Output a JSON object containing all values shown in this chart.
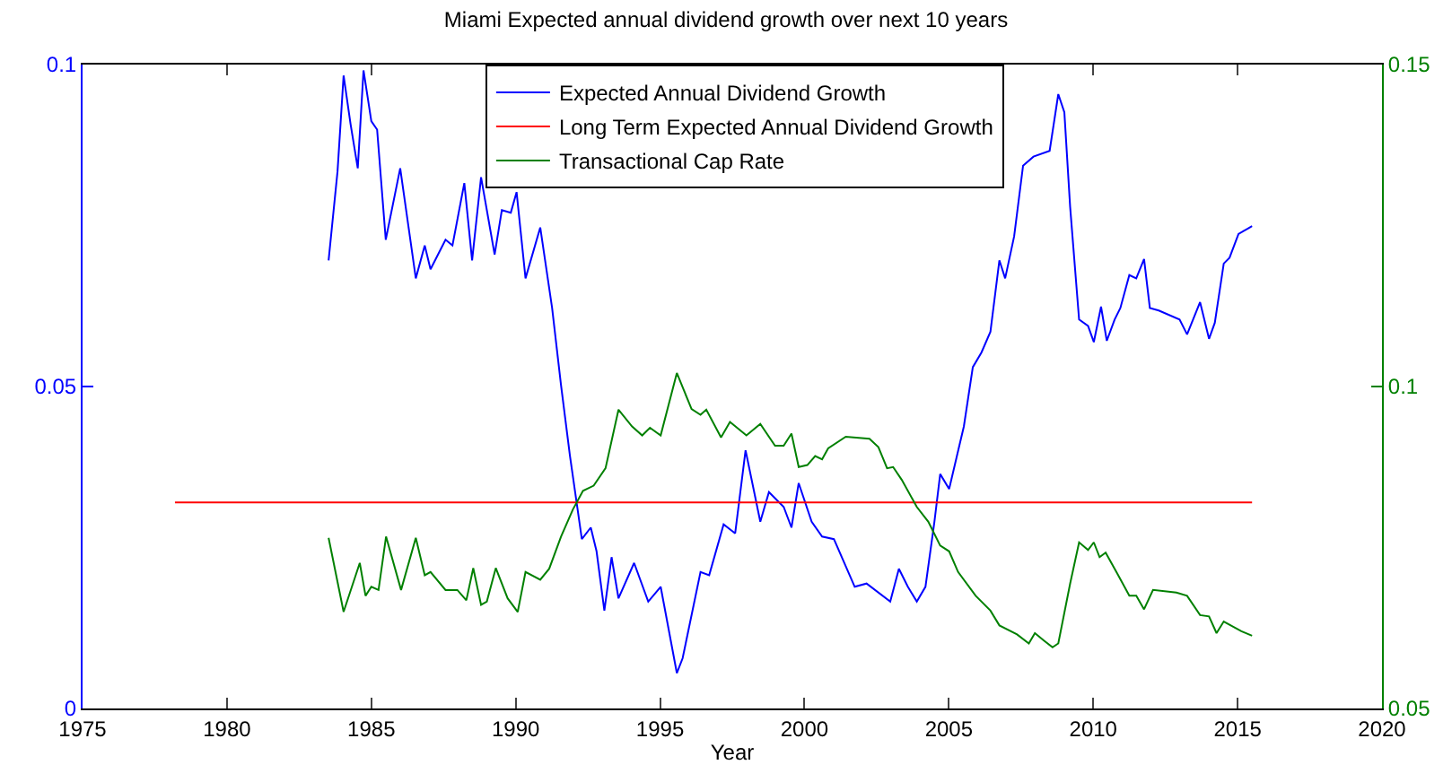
{
  "chart_data": {
    "type": "line",
    "title": "Miami Expected annual dividend growth over next 10 years",
    "xlabel": "Year",
    "xlim": [
      1975,
      2020
    ],
    "xticks": [
      1975,
      1980,
      1985,
      1990,
      1995,
      2000,
      2005,
      2010,
      2015,
      2020
    ],
    "ylim": [
      0,
      0.1
    ],
    "yticks": [
      0,
      0.05,
      0.1
    ],
    "y2lim": [
      0.05,
      0.15
    ],
    "y2ticks": [
      0.05,
      0.1,
      0.15
    ],
    "legend": "top",
    "marker": "none",
    "line_style": "solid",
    "series": [
      {
        "name": "Expected Annual Dividend Growth",
        "color": "#0000ff",
        "x": [
          1983.52,
          1983.83,
          1984.04,
          1984.28,
          1984.53,
          1984.73,
          1985.0,
          1985.2,
          1985.5,
          1986.0,
          1986.54,
          1986.85,
          1987.05,
          1987.57,
          1987.81,
          1988.22,
          1988.49,
          1988.8,
          1989.27,
          1989.52,
          1989.83,
          1990.03,
          1990.34,
          1990.85,
          1991.26,
          1991.57,
          1991.88,
          1992.29,
          1992.6,
          1992.8,
          1993.07,
          1993.32,
          1993.56,
          1994.1,
          1994.59,
          1995.02,
          1995.58,
          1995.78,
          1996.4,
          1996.7,
          1997.2,
          1997.6,
          1997.96,
          1998.47,
          1998.77,
          1999.28,
          1999.55,
          1999.8,
          2000.25,
          2000.61,
          2001.02,
          2001.74,
          2002.15,
          2002.97,
          2003.27,
          2003.58,
          2003.89,
          2004.19,
          2004.5,
          2004.7,
          2005.01,
          2005.52,
          2005.83,
          2006.13,
          2006.44,
          2006.75,
          2006.95,
          2007.26,
          2007.57,
          2007.93,
          2008.49,
          2008.79,
          2009.0,
          2009.2,
          2009.51,
          2009.82,
          2010.02,
          2010.27,
          2010.47,
          2010.74,
          2010.94,
          2011.25,
          2011.49,
          2011.76,
          2011.96,
          2012.27,
          2012.99,
          2013.25,
          2013.7,
          2014.01,
          2014.21,
          2014.52,
          2014.72,
          2015.03,
          2015.23,
          2015.5
        ],
        "values": [
          0.0696,
          0.0834,
          0.0983,
          0.0908,
          0.0839,
          0.0991,
          0.0912,
          0.0899,
          0.0728,
          0.0839,
          0.0668,
          0.0719,
          0.0682,
          0.0728,
          0.0719,
          0.0816,
          0.0696,
          0.0825,
          0.0705,
          0.0774,
          0.077,
          0.0802,
          0.0668,
          0.0747,
          0.0622,
          0.0502,
          0.0392,
          0.0263,
          0.0281,
          0.0244,
          0.0152,
          0.0235,
          0.0171,
          0.0226,
          0.0166,
          0.0189,
          0.0055,
          0.0078,
          0.0212,
          0.0207,
          0.0286,
          0.0272,
          0.0401,
          0.029,
          0.0336,
          0.0313,
          0.0281,
          0.035,
          0.029,
          0.0267,
          0.0263,
          0.0189,
          0.0194,
          0.0166,
          0.0217,
          0.0189,
          0.0166,
          0.0189,
          0.029,
          0.0364,
          0.0341,
          0.0438,
          0.053,
          0.0553,
          0.0585,
          0.0696,
          0.0668,
          0.0733,
          0.0843,
          0.0857,
          0.0866,
          0.0954,
          0.0926,
          0.0779,
          0.0604,
          0.0594,
          0.0569,
          0.0624,
          0.0571,
          0.0604,
          0.0622,
          0.0673,
          0.0668,
          0.0698,
          0.0622,
          0.0618,
          0.0604,
          0.0581,
          0.0631,
          0.0574,
          0.0599,
          0.0691,
          0.07,
          0.0737,
          0.0742,
          0.0749
        ]
      },
      {
        "name": "Long Term Expected Annual Dividend Growth",
        "color": "#ff0000",
        "x": [
          1978.2,
          2015.5
        ],
        "values": [
          0.032,
          0.032
        ]
      },
      {
        "name": "Transactional Cap Rate",
        "color": "#008000",
        "axis": "y2",
        "x": [
          1983.52,
          1984.04,
          1984.6,
          1984.8,
          1985.0,
          1985.25,
          1985.51,
          1986.03,
          1986.54,
          1986.85,
          1987.05,
          1987.57,
          1987.98,
          1988.29,
          1988.53,
          1988.8,
          1989.0,
          1989.31,
          1989.72,
          1990.07,
          1990.34,
          1990.85,
          1991.16,
          1991.57,
          1991.98,
          1992.33,
          1992.7,
          1993.11,
          1993.56,
          1994.03,
          1994.38,
          1994.65,
          1995.02,
          1995.58,
          1996.09,
          1996.4,
          1996.6,
          1997.11,
          1997.42,
          1997.99,
          1998.47,
          1998.98,
          1999.28,
          1999.55,
          1999.8,
          2000.1,
          2000.37,
          2000.61,
          2000.82,
          2001.43,
          2002.25,
          2002.56,
          2002.86,
          2003.07,
          2003.37,
          2003.89,
          2004.29,
          2004.7,
          2005.01,
          2005.32,
          2005.93,
          2006.44,
          2006.75,
          2007.36,
          2007.77,
          2007.98,
          2008.28,
          2008.59,
          2008.79,
          2009.2,
          2009.51,
          2009.82,
          2010.02,
          2010.22,
          2010.43,
          2010.84,
          2011.25,
          2011.49,
          2011.76,
          2012.07,
          2012.88,
          2013.25,
          2013.7,
          2014.01,
          2014.27,
          2014.52,
          2015.13,
          2015.5
        ],
        "values": [
          0.0765,
          0.065,
          0.0726,
          0.0675,
          0.0689,
          0.0684,
          0.0767,
          0.0684,
          0.0765,
          0.0707,
          0.0712,
          0.0684,
          0.0684,
          0.0668,
          0.0718,
          0.0661,
          0.0666,
          0.0718,
          0.0671,
          0.065,
          0.0712,
          0.07,
          0.0717,
          0.0767,
          0.0809,
          0.0838,
          0.0846,
          0.0873,
          0.0964,
          0.0938,
          0.0924,
          0.0936,
          0.0924,
          0.1021,
          0.0965,
          0.0956,
          0.0964,
          0.0921,
          0.0945,
          0.0924,
          0.0942,
          0.0908,
          0.0908,
          0.0927,
          0.0875,
          0.0878,
          0.0892,
          0.0887,
          0.0904,
          0.0922,
          0.0919,
          0.0906,
          0.0873,
          0.0875,
          0.0855,
          0.0813,
          0.079,
          0.0753,
          0.0744,
          0.0712,
          0.0675,
          0.0652,
          0.0629,
          0.0615,
          0.0601,
          0.0617,
          0.0606,
          0.0595,
          0.0601,
          0.0694,
          0.0758,
          0.0746,
          0.0758,
          0.0735,
          0.0742,
          0.0709,
          0.0675,
          0.0675,
          0.0654,
          0.0684,
          0.068,
          0.0675,
          0.0645,
          0.0643,
          0.0617,
          0.0635,
          0.062,
          0.0613
        ]
      }
    ]
  }
}
